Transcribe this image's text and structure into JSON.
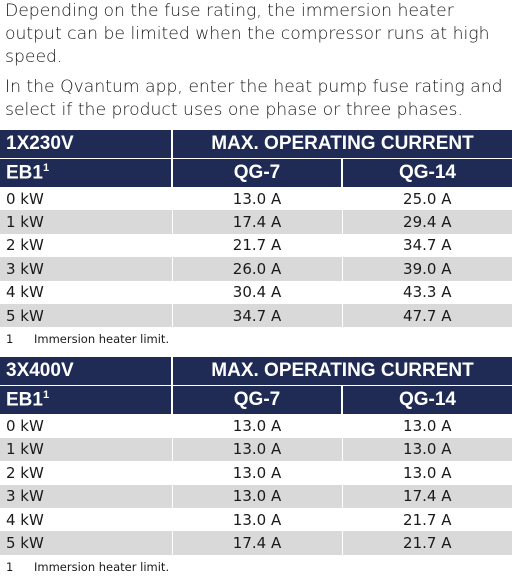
{
  "paragraphs": [
    "Depending on the fuse rating, the immersion heater output can be limited when the compressor runs at high speed.",
    "In the Qvantum app, enter the heat pump fuse rating and select if the product uses one phase or three phases."
  ],
  "tables": [
    {
      "title": "1X230V",
      "header": "MAX. OPERATING CURRENT",
      "row_label": "EB1",
      "row_label_note": "1",
      "columns": [
        "QG-7",
        "QG-14"
      ],
      "rows": [
        [
          "0 kW",
          "13.0 A",
          "25.0 A"
        ],
        [
          "1 kW",
          "17.4 A",
          "29.4 A"
        ],
        [
          "2 kW",
          "21.7 A",
          "34.7 A"
        ],
        [
          "3 kW",
          "26.0 A",
          "39.0 A"
        ],
        [
          "4 kW",
          "30.4 A",
          "43.3 A"
        ],
        [
          "5 kW",
          "34.7 A",
          "47.7 A"
        ]
      ],
      "footnote": {
        "marker": "1",
        "text": "Immersion heater limit."
      }
    },
    {
      "title": "3X400V",
      "header": "MAX. OPERATING CURRENT",
      "row_label": "EB1",
      "row_label_note": "1",
      "columns": [
        "QG-7",
        "QG-14"
      ],
      "rows": [
        [
          "0 kW",
          "13.0 A",
          "13.0 A"
        ],
        [
          "1 kW",
          "13.0 A",
          "13.0 A"
        ],
        [
          "2 kW",
          "13.0 A",
          "13.0 A"
        ],
        [
          "3 kW",
          "13.0 A",
          "17.4 A"
        ],
        [
          "4 kW",
          "13.0 A",
          "21.7 A"
        ],
        [
          "5 kW",
          "17.4 A",
          "21.7 A"
        ]
      ],
      "footnote": {
        "marker": "1",
        "text": "Immersion heater limit."
      }
    }
  ]
}
